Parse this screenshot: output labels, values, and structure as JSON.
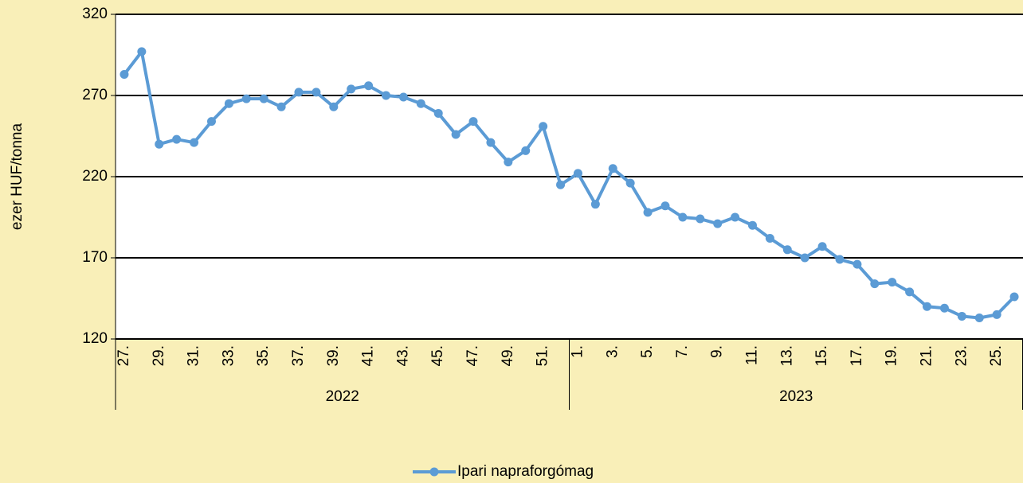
{
  "chart_data": {
    "type": "line",
    "y_label": "ezer HUF/tonna",
    "groups": [
      {
        "name": "2022",
        "categories": [
          "27.",
          null,
          "29.",
          null,
          "31.",
          null,
          "33.",
          null,
          "35.",
          null,
          "37.",
          null,
          "39.",
          null,
          "41.",
          null,
          "43.",
          null,
          "45.",
          null,
          "47.",
          null,
          "49.",
          null,
          "51.",
          null
        ]
      },
      {
        "name": "2023",
        "categories": [
          "1.",
          null,
          "3.",
          null,
          "5.",
          null,
          "7.",
          null,
          "9.",
          null,
          "11.",
          null,
          "13.",
          null,
          "15.",
          null,
          "17.",
          null,
          "19.",
          null,
          "21.",
          null,
          "23.",
          null,
          "25.",
          null
        ]
      }
    ],
    "series": [
      {
        "name": "Ipari napraforgómag",
        "color": "#5b9bd5",
        "values": [
          283,
          297,
          240,
          243,
          241,
          254,
          265,
          268,
          268,
          263,
          272,
          272,
          263,
          274,
          276,
          270,
          269,
          265,
          259,
          246,
          254,
          241,
          229,
          236,
          251,
          215,
          222,
          203,
          225,
          216,
          198,
          202,
          195,
          194,
          191,
          195,
          190,
          182,
          175,
          170,
          177,
          169,
          166,
          154,
          155,
          149,
          140,
          139,
          134,
          133,
          135,
          146
        ]
      }
    ],
    "ylim": [
      120,
      320
    ],
    "yticks": [
      120,
      170,
      220,
      270,
      320
    ],
    "grid": true,
    "legend": "bottom"
  }
}
